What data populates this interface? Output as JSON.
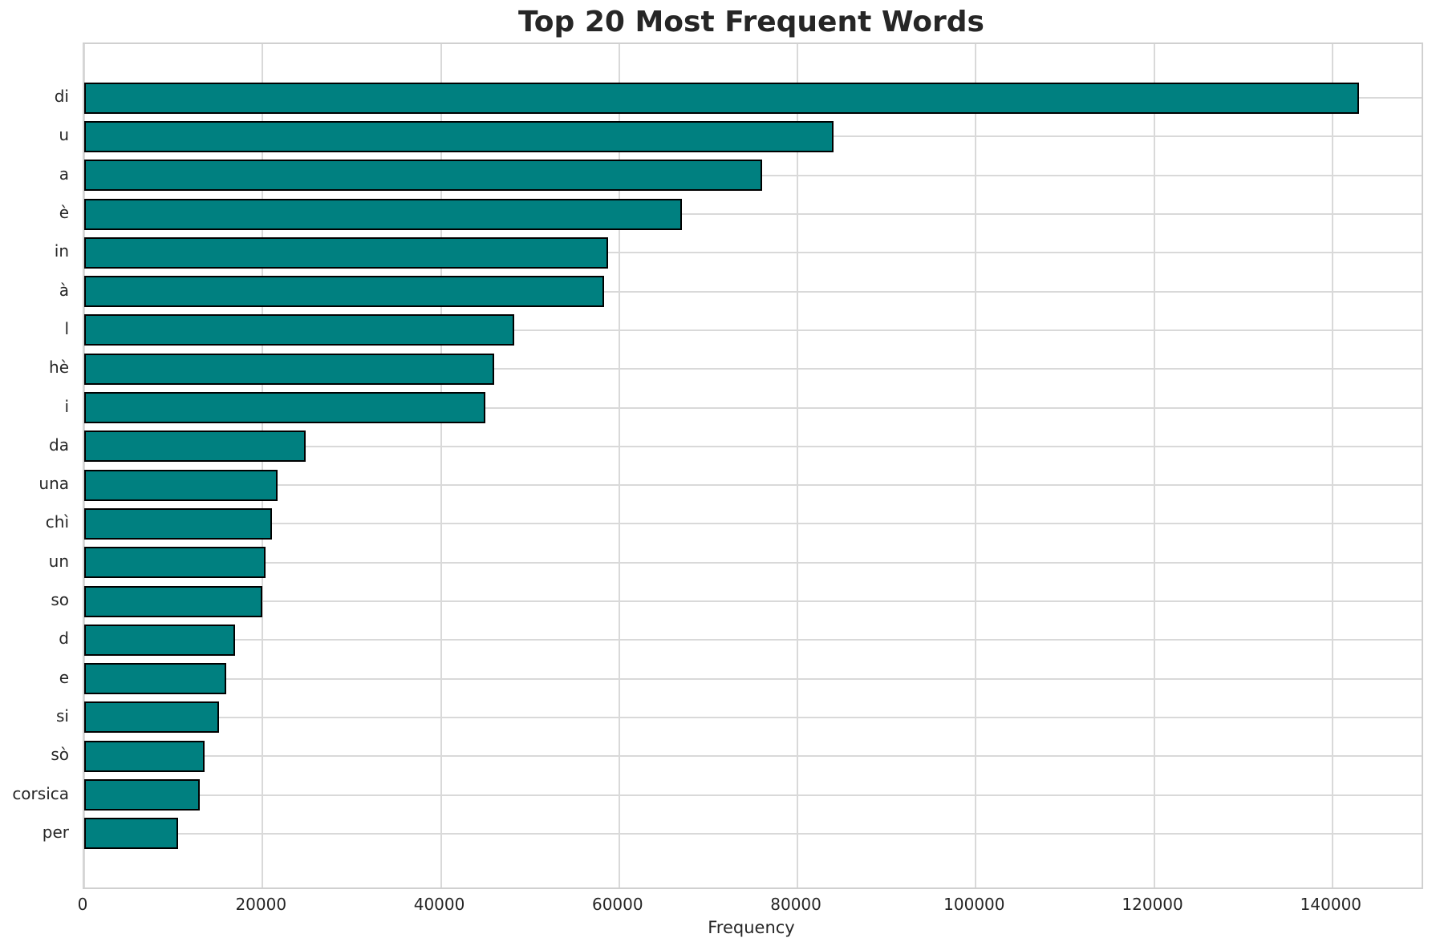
{
  "chart_data": {
    "type": "bar",
    "orientation": "horizontal",
    "title": "Top 20 Most Frequent Words",
    "xlabel": "Frequency",
    "ylabel": "",
    "categories": [
      "di",
      "u",
      "a",
      "è",
      "in",
      "à",
      "l",
      "hè",
      "i",
      "da",
      "una",
      "chì",
      "un",
      "so",
      "d",
      "e",
      "si",
      "sò",
      "corsica",
      "per"
    ],
    "values": [
      143000,
      84000,
      76000,
      67000,
      58800,
      58300,
      48200,
      46000,
      45000,
      24800,
      21700,
      21100,
      20300,
      20000,
      16900,
      15900,
      15100,
      13500,
      13000,
      10500
    ],
    "xlim": [
      0,
      150000
    ],
    "x_ticks": [
      0,
      20000,
      40000,
      60000,
      80000,
      100000,
      120000,
      140000
    ],
    "grid": true,
    "legend": false,
    "bar_color": "#008080",
    "bar_edge_color": "#000000",
    "grid_color": "#d9d9d9",
    "axes_edge_color": "#d0d0d0",
    "text_color": "#262626"
  }
}
